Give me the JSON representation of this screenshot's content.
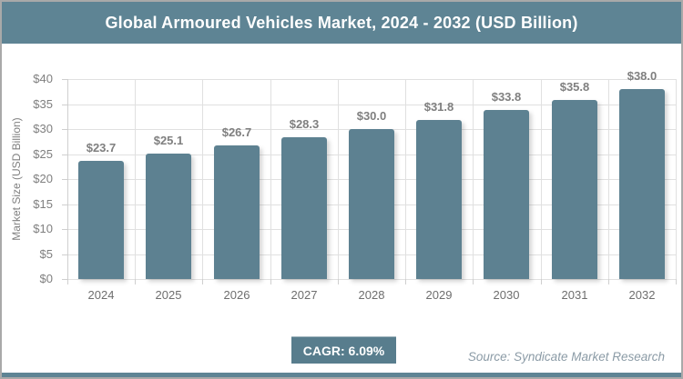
{
  "header": {
    "title": "Global Armoured Vehicles Market, 2024 - 2032 (USD Billion)"
  },
  "footer": {
    "cagr_label": "CAGR: 6.09%",
    "source": "Source: Syndicate Market Research"
  },
  "colors": {
    "band": "#5e8494",
    "bar": "#5d8191",
    "badge": "#587d8d",
    "grid": "#e0e0e0",
    "axis_text": "#7f7f7f",
    "value_label_text": "#7f7f7f",
    "source_text": "#8b9ba6"
  },
  "chart_data": {
    "type": "bar",
    "title": "Global Armoured Vehicles Market, 2024 - 2032 (USD Billion)",
    "categories": [
      "2024",
      "2025",
      "2026",
      "2027",
      "2028",
      "2029",
      "2030",
      "2031",
      "2032"
    ],
    "values": [
      23.7,
      25.1,
      26.7,
      28.3,
      30.0,
      31.8,
      33.8,
      35.8,
      38.0
    ],
    "value_labels": [
      "$23.7",
      "$25.1",
      "$26.7",
      "$28.3",
      "$30.0",
      "$31.8",
      "$33.8",
      "$35.8",
      "$38.0"
    ],
    "xlabel": "",
    "ylabel": "Market Size (USD Billion)",
    "ylim": [
      0,
      40
    ],
    "ytick_step": 5,
    "yticks": [
      "$0",
      "$5",
      "$10",
      "$15",
      "$20",
      "$25",
      "$30",
      "$35",
      "$40"
    ],
    "grid": true,
    "legend": "none",
    "annotations": [
      "CAGR: 6.09%"
    ]
  }
}
